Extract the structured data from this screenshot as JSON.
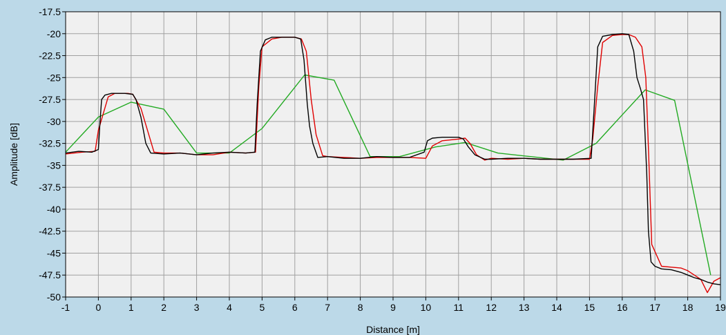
{
  "chart_data": {
    "type": "line",
    "title": "",
    "xlabel": "Distance [m]",
    "ylabel": "Amplitude [dB]",
    "xlim": [
      -1,
      19
    ],
    "ylim": [
      -50,
      -17.5
    ],
    "x_ticks": [
      "-1",
      "0",
      "1",
      "2",
      "3",
      "4",
      "5",
      "6",
      "7",
      "8",
      "9",
      "10",
      "11",
      "12",
      "13",
      "14",
      "15",
      "16",
      "17",
      "18",
      "19"
    ],
    "y_ticks": [
      "-17.5",
      "-20",
      "-22.5",
      "-25",
      "-27.5",
      "-30",
      "-32.5",
      "-35",
      "-37.5",
      "-40",
      "-42.5",
      "-45",
      "-47.5",
      "-50"
    ],
    "grid": true,
    "legend": "none",
    "colors": {
      "background": "#bcd9e8",
      "plot": "#f0f0f0",
      "grid": "#a0a0a0"
    },
    "series": [
      {
        "color": "#000000",
        "x": [
          -1,
          -0.6,
          -0.2,
          0.0,
          0.05,
          0.1,
          0.2,
          0.4,
          0.8,
          1.05,
          1.15,
          1.3,
          1.45,
          1.6,
          2.0,
          2.5,
          3.0,
          3.5,
          4.0,
          4.5,
          4.78,
          4.85,
          4.95,
          5.1,
          5.3,
          5.6,
          6.0,
          6.18,
          6.28,
          6.38,
          6.45,
          6.55,
          6.7,
          7.0,
          7.5,
          8.0,
          8.5,
          9.0,
          9.5,
          9.95,
          10.05,
          10.2,
          10.5,
          11.0,
          11.15,
          11.3,
          11.5,
          11.8,
          12.0,
          12.5,
          13.0,
          13.5,
          14.0,
          14.5,
          15.05,
          15.15,
          15.25,
          15.4,
          15.7,
          16.0,
          16.2,
          16.35,
          16.45,
          16.55,
          16.65,
          16.75,
          16.8,
          16.88,
          17.0,
          17.2,
          17.5,
          17.8,
          18.0,
          18.2,
          18.4,
          18.6,
          18.8,
          19.0
        ],
        "y": [
          -33.6,
          -33.4,
          -33.5,
          -33.2,
          -30.0,
          -27.5,
          -27.0,
          -26.8,
          -26.8,
          -26.9,
          -27.5,
          -29.5,
          -32.5,
          -33.6,
          -33.7,
          -33.6,
          -33.8,
          -33.6,
          -33.5,
          -33.6,
          -33.5,
          -28.0,
          -22.0,
          -20.7,
          -20.4,
          -20.4,
          -20.4,
          -20.6,
          -23.0,
          -28.0,
          -30.5,
          -32.5,
          -34.1,
          -34.0,
          -34.2,
          -34.2,
          -34.0,
          -34.1,
          -34.1,
          -33.5,
          -32.2,
          -31.9,
          -31.8,
          -31.8,
          -32.0,
          -32.9,
          -33.8,
          -34.3,
          -34.3,
          -34.2,
          -34.2,
          -34.3,
          -34.3,
          -34.3,
          -34.2,
          -28.0,
          -21.5,
          -20.3,
          -20.1,
          -20.0,
          -20.1,
          -22.0,
          -25.0,
          -26.2,
          -27.5,
          -36.0,
          -42.5,
          -46.0,
          -46.5,
          -46.8,
          -46.9,
          -47.2,
          -47.5,
          -47.8,
          -48.0,
          -48.3,
          -48.5,
          -48.6
        ]
      },
      {
        "color": "#e00000",
        "x": [
          -1,
          -0.5,
          -0.1,
          0.0,
          0.3,
          0.5,
          0.9,
          1.05,
          1.3,
          1.5,
          1.7,
          2.0,
          2.5,
          3.0,
          3.5,
          4.0,
          4.5,
          4.8,
          4.9,
          5.0,
          5.3,
          5.6,
          6.0,
          6.2,
          6.35,
          6.5,
          6.65,
          6.85,
          7.0,
          7.5,
          8.0,
          8.5,
          9.0,
          9.5,
          10.0,
          10.2,
          10.5,
          11.0,
          11.2,
          11.35,
          11.55,
          11.8,
          12.0,
          12.5,
          13.0,
          13.5,
          14.0,
          14.5,
          15.0,
          15.1,
          15.25,
          15.4,
          15.7,
          16.0,
          16.2,
          16.4,
          16.6,
          16.72,
          16.8,
          16.9,
          17.2,
          17.5,
          17.8,
          18.0,
          18.2,
          18.4,
          18.6,
          18.8,
          19.0
        ],
        "y": [
          -33.7,
          -33.5,
          -33.4,
          -31.0,
          -27.2,
          -26.8,
          -26.8,
          -26.9,
          -28.5,
          -31.0,
          -33.5,
          -33.6,
          -33.6,
          -33.8,
          -33.8,
          -33.5,
          -33.6,
          -33.5,
          -26.0,
          -21.5,
          -20.6,
          -20.4,
          -20.4,
          -20.6,
          -22.0,
          -27.5,
          -31.5,
          -33.9,
          -34.0,
          -34.1,
          -34.2,
          -34.1,
          -34.1,
          -34.1,
          -34.2,
          -32.8,
          -32.2,
          -32.0,
          -31.9,
          -32.5,
          -33.8,
          -34.4,
          -34.2,
          -34.3,
          -34.2,
          -34.3,
          -34.3,
          -34.3,
          -34.3,
          -32.0,
          -26.0,
          -21.0,
          -20.2,
          -20.1,
          -20.1,
          -20.4,
          -21.5,
          -25.0,
          -33.0,
          -44.0,
          -46.5,
          -46.6,
          -46.7,
          -47.0,
          -47.5,
          -48.0,
          -49.5,
          -48.2,
          -47.8
        ]
      },
      {
        "color": "#22aa22",
        "x": [
          -1,
          0.0,
          1.0,
          2.0,
          3.0,
          4.0,
          5.0,
          6.3,
          7.2,
          8.3,
          9.2,
          10.3,
          11.2,
          12.2,
          13.2,
          14.2,
          15.2,
          16.7,
          17.6,
          18.7
        ],
        "y": [
          -33.5,
          -29.5,
          -27.8,
          -28.6,
          -33.6,
          -33.6,
          -30.8,
          -24.7,
          -25.3,
          -34.0,
          -34.0,
          -32.9,
          -32.4,
          -33.6,
          -34.0,
          -34.4,
          -32.5,
          -26.4,
          -27.6,
          -47.5
        ]
      }
    ]
  }
}
